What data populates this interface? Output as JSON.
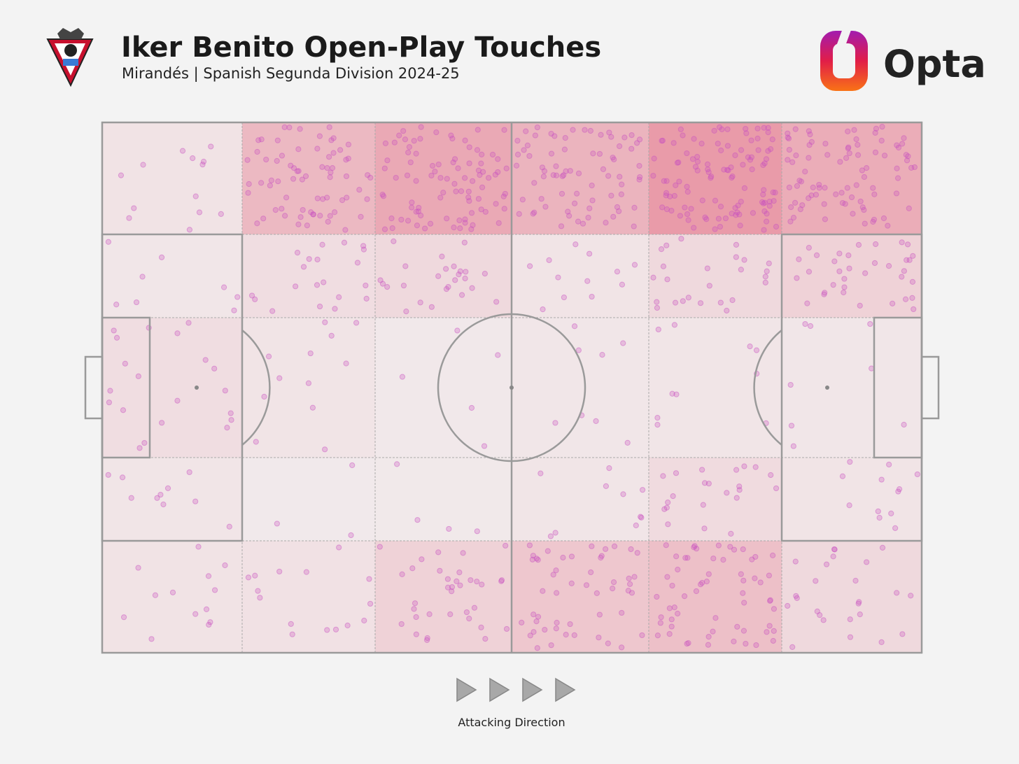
{
  "chart_data": {
    "type": "pitch-heatmap",
    "title": "Iker Benito Open-Play Touches",
    "subtitle": "Mirandés | Spanish Segunda Division 2024-25",
    "brand": "Opta",
    "direction_label": "Attacking Direction",
    "color": "#e0506a",
    "dot_color": "#c84fc0",
    "zone_counts": [
      [
        13,
        70,
        90,
        75,
        110,
        85
      ],
      [
        8,
        20,
        25,
        12,
        25,
        35
      ],
      [
        20,
        12,
        5,
        8,
        10,
        8
      ],
      [
        10,
        3,
        4,
        10,
        22,
        12
      ],
      [
        13,
        15,
        35,
        50,
        60,
        25
      ]
    ]
  }
}
